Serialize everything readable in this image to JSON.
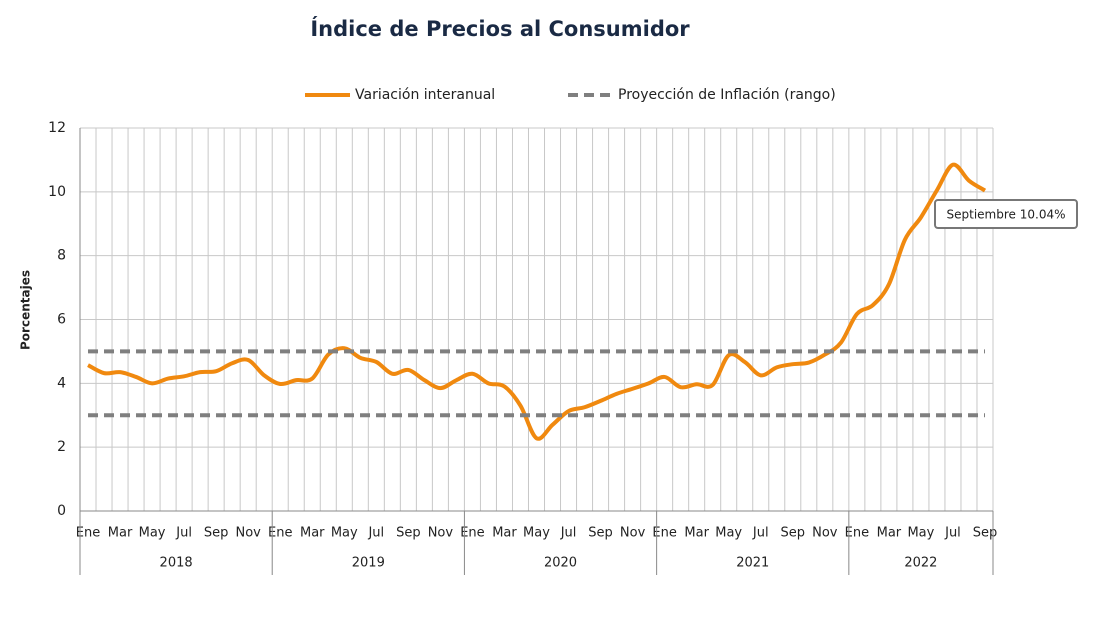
{
  "chart_data": {
    "type": "line",
    "title": "Índice de Precios al Consumidor",
    "ylabel": "Porcentajes",
    "categories": [
      "Ene",
      null,
      "Mar",
      null,
      "May",
      null,
      "Jul",
      null,
      "Sep",
      null,
      "Nov",
      null,
      "Ene",
      null,
      "Mar",
      null,
      "May",
      null,
      "Jul",
      null,
      "Sep",
      null,
      "Nov",
      null,
      "Ene",
      null,
      "Mar",
      null,
      "May",
      null,
      "Jul",
      null,
      "Sep",
      null,
      "Nov",
      null,
      "Ene",
      null,
      "Mar",
      null,
      "May",
      null,
      "Jul",
      null,
      "Sep",
      null,
      "Nov",
      null,
      "Ene",
      null,
      "Mar",
      null,
      "May",
      null,
      "Jul",
      null,
      "Sep"
    ],
    "years": [
      "2018",
      "2019",
      "2020",
      "2021",
      "2022"
    ],
    "series": [
      {
        "name": "Variación interanual",
        "color": "#f0890f",
        "values": [
          4.57,
          4.32,
          4.35,
          4.2,
          4.0,
          4.15,
          4.22,
          4.35,
          4.38,
          4.63,
          4.73,
          4.25,
          3.98,
          4.1,
          4.15,
          4.9,
          5.1,
          4.8,
          4.67,
          4.3,
          4.42,
          4.1,
          3.85,
          4.1,
          4.3,
          4.0,
          3.9,
          3.3,
          2.28,
          2.7,
          3.13,
          3.25,
          3.45,
          3.67,
          3.83,
          4.0,
          4.2,
          3.88,
          3.97,
          3.95,
          4.88,
          4.67,
          4.25,
          4.5,
          4.6,
          4.65,
          4.9,
          5.27,
          6.17,
          6.45,
          7.1,
          8.5,
          9.2,
          10.05,
          10.85,
          10.35,
          10.04
        ]
      },
      {
        "name": "Proyección de Inflación (rango)",
        "color": "#7f7f7f",
        "range": [
          3,
          5
        ]
      }
    ],
    "annotation": "Septiembre 10.04%",
    "ylim": [
      0,
      12
    ],
    "yticks": [
      0,
      2,
      4,
      6,
      8,
      10,
      12
    ],
    "grid": true
  }
}
